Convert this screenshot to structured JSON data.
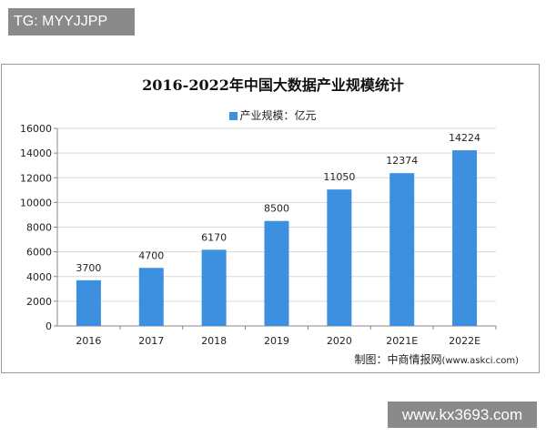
{
  "overlay_tag": "TG: MYYJJPP",
  "site_label": "www.kx3693.com",
  "credit": {
    "label": "制图：中商情报网",
    "url": "(www.askci.com)"
  },
  "chart_data": {
    "type": "bar",
    "title": "2016-2022年中国大数据产业规模统计",
    "legend_position": "top",
    "categories": [
      "2016",
      "2017",
      "2018",
      "2019",
      "2020",
      "2021E",
      "2022E"
    ],
    "series": [
      {
        "name": "产业规模：亿元",
        "values": [
          3700,
          4700,
          6170,
          8500,
          11050,
          12374,
          14224
        ],
        "color": "#3d8fe0"
      }
    ],
    "ylim": [
      0,
      16000
    ],
    "yticks": [
      0,
      2000,
      4000,
      6000,
      8000,
      10000,
      12000,
      14000,
      16000
    ],
    "grid": true,
    "data_labels": true
  }
}
